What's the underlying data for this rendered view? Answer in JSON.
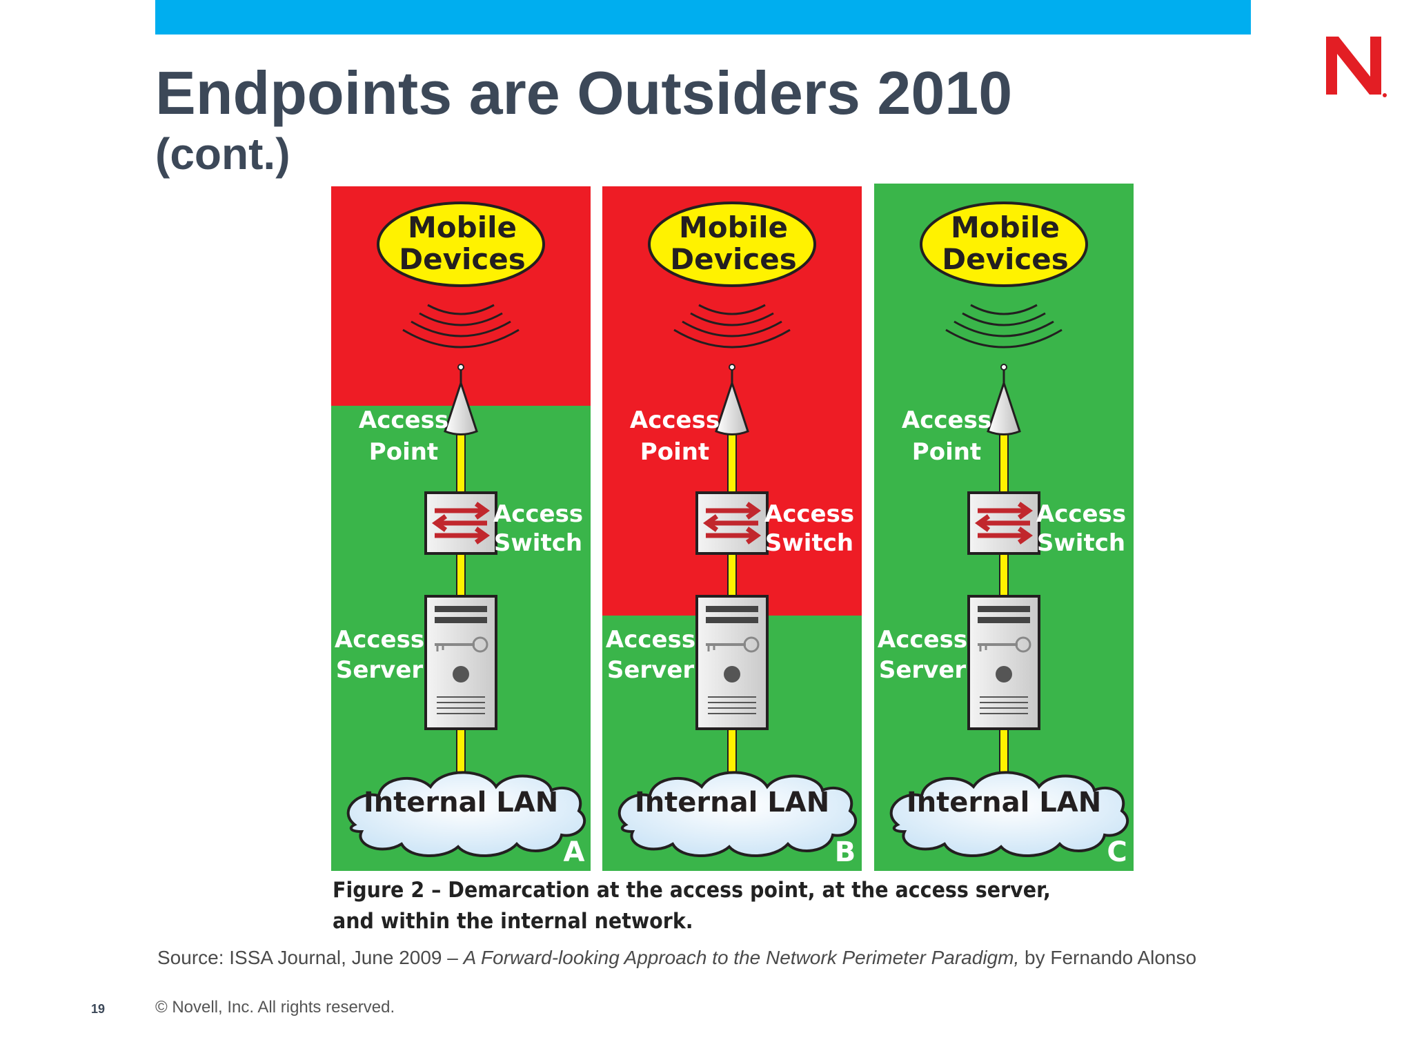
{
  "header": {
    "title": "Endpoints are Outsiders 2010",
    "subtitle": "(cont.)"
  },
  "colors": {
    "accent_bar": "#00aeef",
    "logo_red": "#e31e24",
    "untrusted_zone": "#ee1c25",
    "trusted_zone": "#3ab54a",
    "device_oval": "#fff200",
    "cable": "#fff200",
    "title_text": "#3c4858"
  },
  "figure": {
    "panels": [
      {
        "letter": "A",
        "device_label_line1": "Mobile",
        "device_label_line2": "Devices",
        "ap_line1": "Access",
        "ap_line2": "Point",
        "switch_line1": "Access",
        "switch_line2": "Switch",
        "server_line1": "Access",
        "server_line2": "Server",
        "lan_label": "Internal LAN"
      },
      {
        "letter": "B",
        "device_label_line1": "Mobile",
        "device_label_line2": "Devices",
        "ap_line1": "Access",
        "ap_line2": "Point",
        "switch_line1": "Access",
        "switch_line2": "Switch",
        "server_line1": "Access",
        "server_line2": "Server",
        "lan_label": "Internal LAN"
      },
      {
        "letter": "C",
        "device_label_line1": "Mobile",
        "device_label_line2": "Devices",
        "ap_line1": "Access",
        "ap_line2": "Point",
        "switch_line1": "Access",
        "switch_line2": "Switch",
        "server_line1": "Access",
        "server_line2": "Server",
        "lan_label": "Internal LAN"
      }
    ],
    "caption": "Figure 2 – Demarcation at the access point, at the access server, and within the internal network."
  },
  "source": {
    "prefix": "Source: ISSA Journal, June 2009 – ",
    "title": "A Forward-looking Approach to the Network Perimeter Paradigm,",
    "suffix": " by Fernando Alonso"
  },
  "footer": {
    "page_number": "19",
    "copyright": "©  Novell, Inc.  All rights reserved."
  }
}
